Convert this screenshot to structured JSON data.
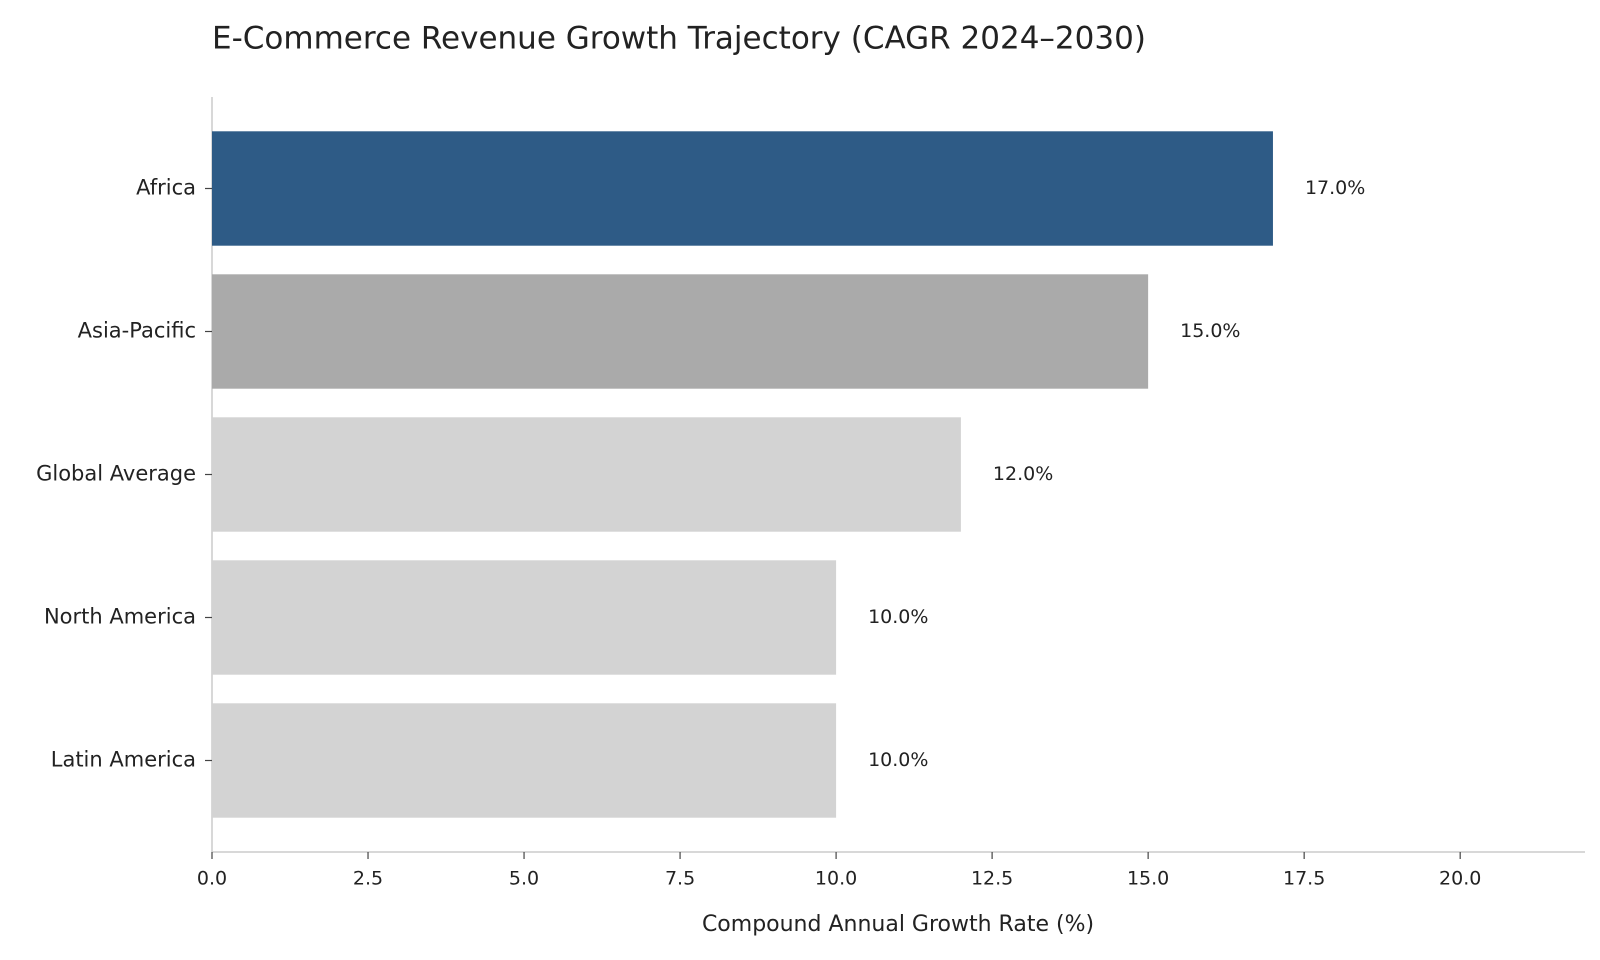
{
  "chart_data": {
    "type": "bar",
    "orientation": "horizontal",
    "title": "E-Commerce Revenue Growth Trajectory (CAGR 2024–2030)",
    "x_label": "Compound Annual Growth Rate (%)",
    "categories": [
      "Africa",
      "Asia-Pacific",
      "Global Average",
      "North America",
      "Latin America"
    ],
    "values": [
      17,
      15,
      12,
      10,
      10
    ],
    "value_labels": [
      "17.0%",
      "15.0%",
      "12.0%",
      "10.0%",
      "10.0%"
    ],
    "colors": [
      "#2e5b86",
      "#aaaaaa",
      "#d3d3d3",
      "#d3d3d3",
      "#d3d3d3"
    ],
    "xlim": [
      0,
      22
    ],
    "xticks": [
      {
        "value": 0,
        "label": "0.0"
      },
      2.5,
      {
        "value": 5,
        "label": "5.0"
      },
      7.5,
      {
        "value": 10,
        "label": "10.0"
      },
      12.5,
      {
        "value": 15,
        "label": "15.0"
      },
      17.5,
      {
        "value": 20,
        "label": "20.0"
      }
    ],
    "grid": false
  }
}
